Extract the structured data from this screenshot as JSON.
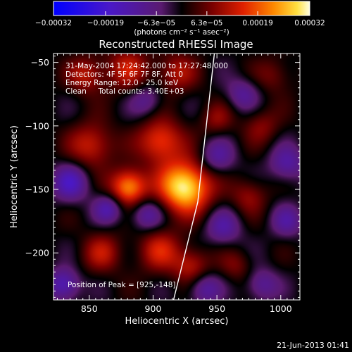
{
  "chart_data": {
    "type": "heatmap",
    "title": "Reconstructed RHESSI Image",
    "xlabel": "Heliocentric X (arcsec)",
    "ylabel": "Heliocentric Y (arcsec)",
    "xlim": [
      822,
      1015
    ],
    "ylim": [
      -237,
      -43
    ],
    "xticks": [
      850,
      900,
      950,
      1000
    ],
    "yticks": [
      -50,
      -100,
      -150,
      -200
    ],
    "colorbar": {
      "min": -0.00032,
      "max": 0.00032,
      "tick_values": [
        -0.00032,
        -0.00019,
        -6.3e-05,
        6.3e-05,
        0.00019,
        0.00032
      ],
      "tick_labels": [
        "-0.00032",
        "-0.00019",
        "-6.3e-05",
        "6.3e-05",
        "0.00019",
        "0.00032"
      ],
      "unit_label": "(photons cm⁻² s⁻¹ asec⁻²)"
    },
    "annotations": [
      "31-May-2004 17:24:42.000 to 17:27:48.000",
      "Detectors: 4F 5F 6F 7F 8F, Att 0",
      "Energy Range: 12.0 - 25.0 keV",
      "Clean     Total counts: 3.40E+03"
    ],
    "peak_label": "Position of Peak = [925,-148]",
    "peak": {
      "x": 925,
      "y": -148,
      "value": 0.00032
    },
    "limb_line": [
      [
        916,
        -237
      ],
      [
        935,
        -160
      ],
      [
        948,
        -43
      ]
    ],
    "sources": [
      {
        "x": 925,
        "y": -148,
        "sigma": 14,
        "value": 0.00032
      },
      {
        "x": 906,
        "y": -112,
        "sigma": 12,
        "value": 0.00018
      },
      {
        "x": 881,
        "y": -148,
        "sigma": 10,
        "value": 0.00024
      },
      {
        "x": 852,
        "y": -115,
        "sigma": 12,
        "value": 0.00014
      },
      {
        "x": 848,
        "y": -60,
        "sigma": 10,
        "value": 0.00012
      },
      {
        "x": 880,
        "y": -55,
        "sigma": 12,
        "value": 0.00012
      },
      {
        "x": 918,
        "y": -58,
        "sigma": 11,
        "value": 0.00011
      },
      {
        "x": 905,
        "y": -198,
        "sigma": 12,
        "value": 0.00013
      },
      {
        "x": 860,
        "y": -200,
        "sigma": 11,
        "value": 0.00011
      },
      {
        "x": 930,
        "y": -210,
        "sigma": 10,
        "value": 0.00012
      },
      {
        "x": 975,
        "y": -155,
        "sigma": 10,
        "value": 9e-05
      },
      {
        "x": 985,
        "y": -100,
        "sigma": 10,
        "value": 8e-05
      },
      {
        "x": 950,
        "y": -95,
        "sigma": 9,
        "value": 8e-05
      },
      {
        "x": 995,
        "y": -60,
        "sigma": 10,
        "value": 7e-05
      },
      {
        "x": 965,
        "y": -210,
        "sigma": 9,
        "value": 7e-05
      },
      {
        "x": 865,
        "y": -165,
        "sigma": 8,
        "value": -0.00013
      },
      {
        "x": 835,
        "y": -145,
        "sigma": 10,
        "value": -0.00015
      },
      {
        "x": 830,
        "y": -225,
        "sigma": 9,
        "value": -0.00016
      },
      {
        "x": 895,
        "y": -170,
        "sigma": 9,
        "value": -0.00012
      },
      {
        "x": 950,
        "y": -125,
        "sigma": 10,
        "value": -0.00011
      },
      {
        "x": 955,
        "y": -180,
        "sigma": 10,
        "value": -0.00011
      },
      {
        "x": 1005,
        "y": -130,
        "sigma": 10,
        "value": -0.00012
      },
      {
        "x": 940,
        "y": -228,
        "sigma": 9,
        "value": -0.00012
      },
      {
        "x": 985,
        "y": -225,
        "sigma": 9,
        "value": -0.00011
      },
      {
        "x": 1005,
        "y": -175,
        "sigma": 9,
        "value": -0.0001
      },
      {
        "x": 970,
        "y": -75,
        "sigma": 9,
        "value": -0.0001
      },
      {
        "x": 895,
        "y": -80,
        "sigma": 9,
        "value": -9e-05
      }
    ]
  },
  "footer": {
    "timestamp": "21-Jun-2013 01:41"
  }
}
